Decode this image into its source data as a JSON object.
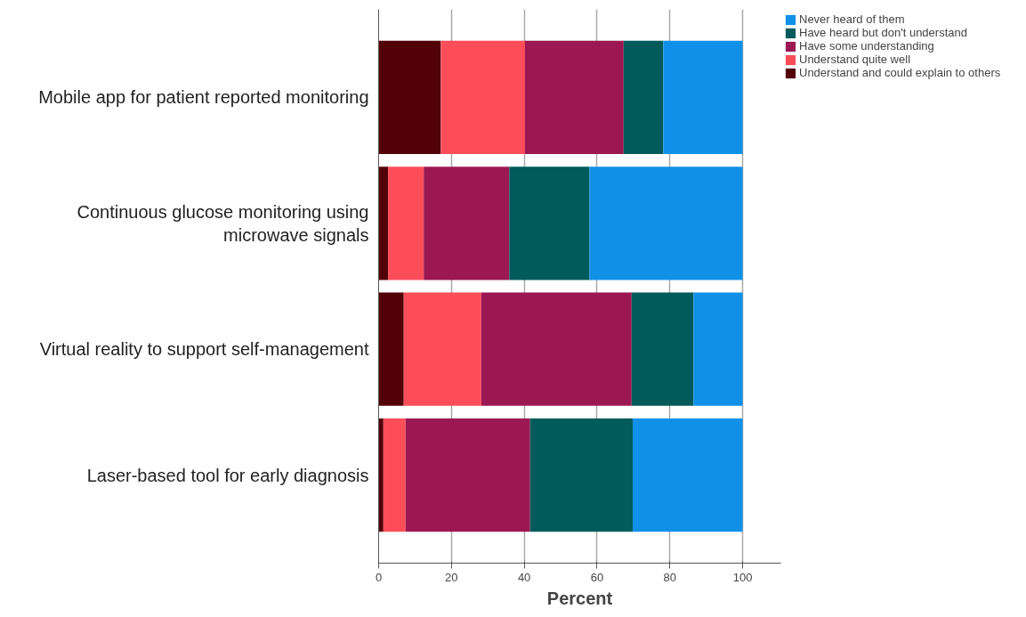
{
  "chart_data": {
    "type": "bar",
    "orientation": "horizontal",
    "stacked": true,
    "categories": [
      "Mobile app for patient reported monitoring",
      "Continuous glucose monitoring using microwave signals",
      "Virtual reality to support self-management",
      "Laser-based tool for early diagnosis"
    ],
    "series": [
      {
        "name": "Understand and could explain to others",
        "color": "#530109",
        "values": [
          17.1,
          2.6,
          6.9,
          1.3
        ]
      },
      {
        "name": "Understand quite well",
        "color": "#fd4d59",
        "values": [
          23.1,
          9.8,
          21.3,
          6.1
        ]
      },
      {
        "name": "Have some understanding",
        "color": "#9c1852",
        "values": [
          27.1,
          23.5,
          41.3,
          34.2
        ]
      },
      {
        "name": "Have heard but don't understand",
        "color": "#015b5b",
        "values": [
          10.9,
          22.0,
          17.0,
          28.2
        ]
      },
      {
        "name": "Never heard of them",
        "color": "#1190e8",
        "values": [
          21.8,
          42.1,
          13.5,
          30.2
        ]
      }
    ],
    "xlabel": "Percent",
    "xlim": [
      0,
      110.5
    ],
    "xticks": [
      0,
      20,
      40,
      60,
      80,
      100
    ],
    "grid": "x",
    "legend": "top right"
  }
}
